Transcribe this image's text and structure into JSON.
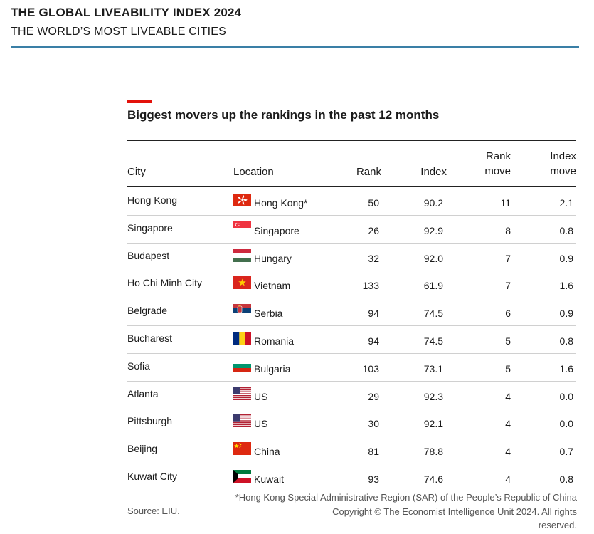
{
  "header": {
    "title": "THE GLOBAL LIVEABILITY INDEX 2024",
    "subtitle": "THE WORLD’S MOST LIVEABLE CITIES"
  },
  "table_title": "Biggest movers up the rankings in the past 12 months",
  "columns": {
    "city": "City",
    "location": "Location",
    "rank": "Rank",
    "index": "Index",
    "rank_move_1": "Rank",
    "rank_move_2": "move",
    "index_move_1": "Index",
    "index_move_2": "move"
  },
  "chart_data": {
    "type": "table",
    "title": "Biggest movers up the rankings in the past 12 months",
    "headers": [
      "City",
      "Location",
      "Rank",
      "Index",
      "Rank move",
      "Index move"
    ],
    "rows": [
      {
        "city": "Hong Kong",
        "location": "Hong Kong*",
        "flag": "hong-kong",
        "rank": "50",
        "index": "90.2",
        "rank_move": "11",
        "index_move": "2.1"
      },
      {
        "city": "Singapore",
        "location": "Singapore",
        "flag": "singapore",
        "rank": "26",
        "index": "92.9",
        "rank_move": "8",
        "index_move": "0.8"
      },
      {
        "city": "Budapest",
        "location": "Hungary",
        "flag": "hungary",
        "rank": "32",
        "index": "92.0",
        "rank_move": "7",
        "index_move": "0.9"
      },
      {
        "city": "Ho Chi Minh City",
        "location": "Vietnam",
        "flag": "vietnam",
        "rank": "133",
        "index": "61.9",
        "rank_move": "7",
        "index_move": "1.6"
      },
      {
        "city": "Belgrade",
        "location": "Serbia",
        "flag": "serbia",
        "rank": "94",
        "index": "74.5",
        "rank_move": "6",
        "index_move": "0.9"
      },
      {
        "city": "Bucharest",
        "location": "Romania",
        "flag": "romania",
        "rank": "94",
        "index": "74.5",
        "rank_move": "5",
        "index_move": "0.8"
      },
      {
        "city": "Sofia",
        "location": "Bulgaria",
        "flag": "bulgaria",
        "rank": "103",
        "index": "73.1",
        "rank_move": "5",
        "index_move": "1.6"
      },
      {
        "city": "Atlanta",
        "location": "US",
        "flag": "us",
        "rank": "29",
        "index": "92.3",
        "rank_move": "4",
        "index_move": "0.0"
      },
      {
        "city": "Pittsburgh",
        "location": "US",
        "flag": "us",
        "rank": "30",
        "index": "92.1",
        "rank_move": "4",
        "index_move": "0.0"
      },
      {
        "city": "Beijing",
        "location": "China",
        "flag": "china",
        "rank": "81",
        "index": "78.8",
        "rank_move": "4",
        "index_move": "0.7"
      },
      {
        "city": "Kuwait City",
        "location": "Kuwait",
        "flag": "kuwait",
        "rank": "93",
        "index": "74.6",
        "rank_move": "4",
        "index_move": "0.8"
      }
    ]
  },
  "footnote": "*Hong Kong Special Administrative Region (SAR) of the People’s Republic of China",
  "source": "Source: EIU.",
  "copyright": "Copyright © The Economist Intelligence Unit 2024. All rights reserved.",
  "colors": {
    "accent_red": "#e3120b",
    "rule_blue": "#3a7fa6"
  }
}
